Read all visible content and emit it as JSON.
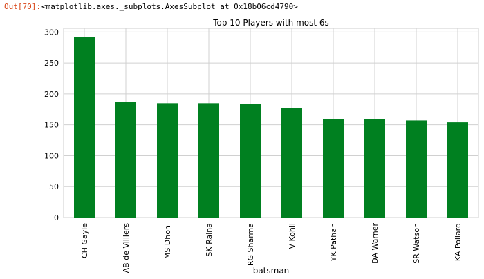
{
  "cell": {
    "prompt": "Out[70]:",
    "repr": "<matplotlib.axes._subplots.AxesSubplot at 0x18b06cd4790>"
  },
  "chart_data": {
    "type": "bar",
    "title": "Top 10 Players with most 6s",
    "xlabel": "batsman",
    "ylabel": "",
    "categories": [
      "CH Gayle",
      "AB de Villiers",
      "MS Dhoni",
      "SK Raina",
      "RG Sharma",
      "V Kohli",
      "YK Pathan",
      "DA Warner",
      "SR Watson",
      "KA Pollard"
    ],
    "values": [
      292,
      187,
      185,
      185,
      184,
      177,
      159,
      159,
      157,
      154
    ],
    "ylim": [
      0,
      306
    ],
    "yticks": [
      0,
      50,
      100,
      150,
      200,
      250,
      300
    ],
    "grid": true,
    "bar_color": "#008020",
    "grid_color": "#d0d0d0"
  }
}
